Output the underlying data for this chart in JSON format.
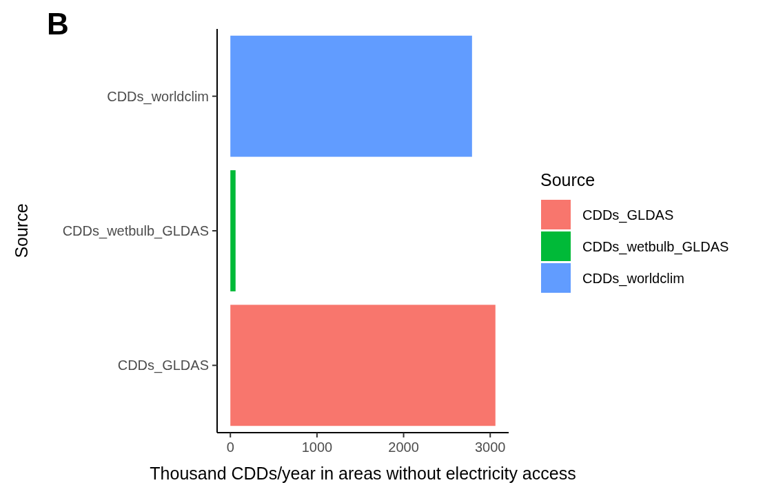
{
  "chart_data": {
    "type": "bar",
    "orientation": "horizontal",
    "title": "B",
    "xlabel": "Thousand CDDs/year in areas without electricity access",
    "ylabel": "Source",
    "legend_title": "Source",
    "categories": [
      "CDDs_worldclim",
      "CDDs_wetbulb_GLDAS",
      "CDDs_GLDAS"
    ],
    "series": [
      {
        "name": "CDDs_GLDAS",
        "color": "#f8766d",
        "values": [
          null,
          null,
          3060
        ]
      },
      {
        "name": "CDDs_wetbulb_GLDAS",
        "color": "#00ba38",
        "values": [
          null,
          60,
          null
        ]
      },
      {
        "name": "CDDs_worldclim",
        "color": "#619cff",
        "values": [
          2790,
          null,
          null
        ]
      }
    ],
    "xlim": [
      -153,
      3213
    ],
    "xticks": [
      0,
      1000,
      2000,
      3000
    ],
    "legend": "right"
  }
}
